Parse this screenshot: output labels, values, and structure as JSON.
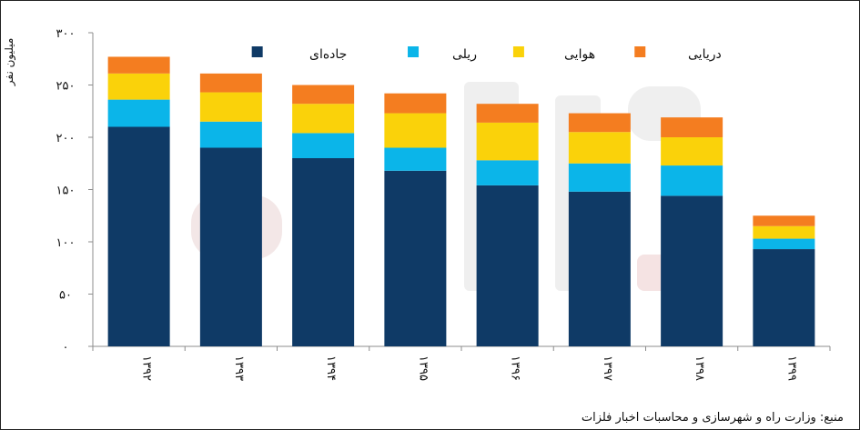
{
  "chart_data": {
    "type": "bar",
    "stacked": true,
    "ylabel": "میلیون نفر",
    "ylim": [
      0,
      300
    ],
    "yticks": [
      "۰",
      "۵۰",
      "۱۰۰",
      "۱۵۰",
      "۲۰۰",
      "۲۵۰",
      "۳۰۰"
    ],
    "ytick_values": [
      0,
      50,
      100,
      150,
      200,
      250,
      300
    ],
    "categories": [
      "۱۳۹۲",
      "۱۳۹۳",
      "۱۳۹۴",
      "۱۳۹۵",
      "۱۳۹۶",
      "۱۳۹۷",
      "۱۳۹۸",
      "۱۳۹۹"
    ],
    "series": [
      {
        "name": "جاده‌ای",
        "color": "#0f3a66",
        "values": [
          210,
          190,
          180,
          168,
          154,
          148,
          144,
          93
        ]
      },
      {
        "name": "ریلی",
        "color": "#0bb5e9",
        "values": [
          26,
          25,
          24,
          22,
          24,
          27,
          29,
          10
        ]
      },
      {
        "name": "هوایی",
        "color": "#fad20a",
        "values": [
          25,
          28,
          28,
          33,
          36,
          30,
          27,
          12
        ]
      },
      {
        "name": "دریایی",
        "color": "#f47d20",
        "values": [
          16,
          18,
          18,
          19,
          18,
          18,
          19,
          10
        ]
      }
    ],
    "legend_position": "top",
    "grid": false
  },
  "source_note": "منبع: وزارت راه و شهرسازی و محاسبات اخبار فلزات"
}
